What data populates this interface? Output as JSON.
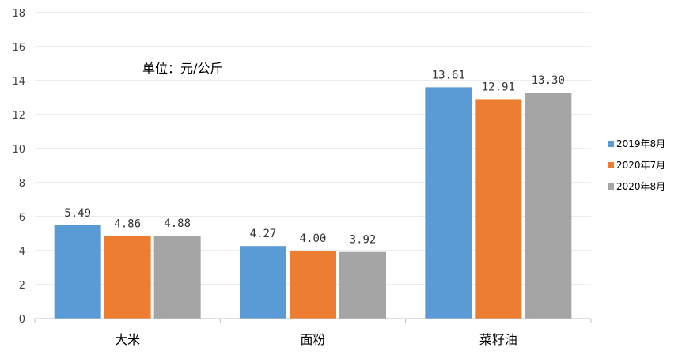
{
  "chart_data": {
    "type": "bar",
    "title": "",
    "xlabel": "",
    "ylabel": "",
    "annotation": "单位：元/公斤",
    "categories": [
      "大米",
      "面粉",
      "菜籽油"
    ],
    "series": [
      {
        "name": "2019年8月",
        "values": [
          5.49,
          4.27,
          13.61
        ],
        "labels": [
          "5.49",
          "4.27",
          "13.61"
        ],
        "color": "#5b9bd5"
      },
      {
        "name": "2020年7月",
        "values": [
          4.86,
          4.0,
          12.91
        ],
        "labels": [
          "4.86",
          "4.00",
          "12.91"
        ],
        "color": "#ed7d31"
      },
      {
        "name": "2020年8月",
        "values": [
          4.88,
          3.92,
          13.3
        ],
        "labels": [
          "4.88",
          "3.92",
          "13.30"
        ],
        "color": "#a5a5a5"
      }
    ],
    "ylim": [
      0,
      18
    ],
    "yticks": [
      0,
      2,
      4,
      6,
      8,
      10,
      12,
      14,
      16,
      18
    ],
    "grid": true,
    "legend_position": "right"
  },
  "colors": {
    "grid": "#d9d9d9",
    "axis": "#bfbfbf"
  }
}
